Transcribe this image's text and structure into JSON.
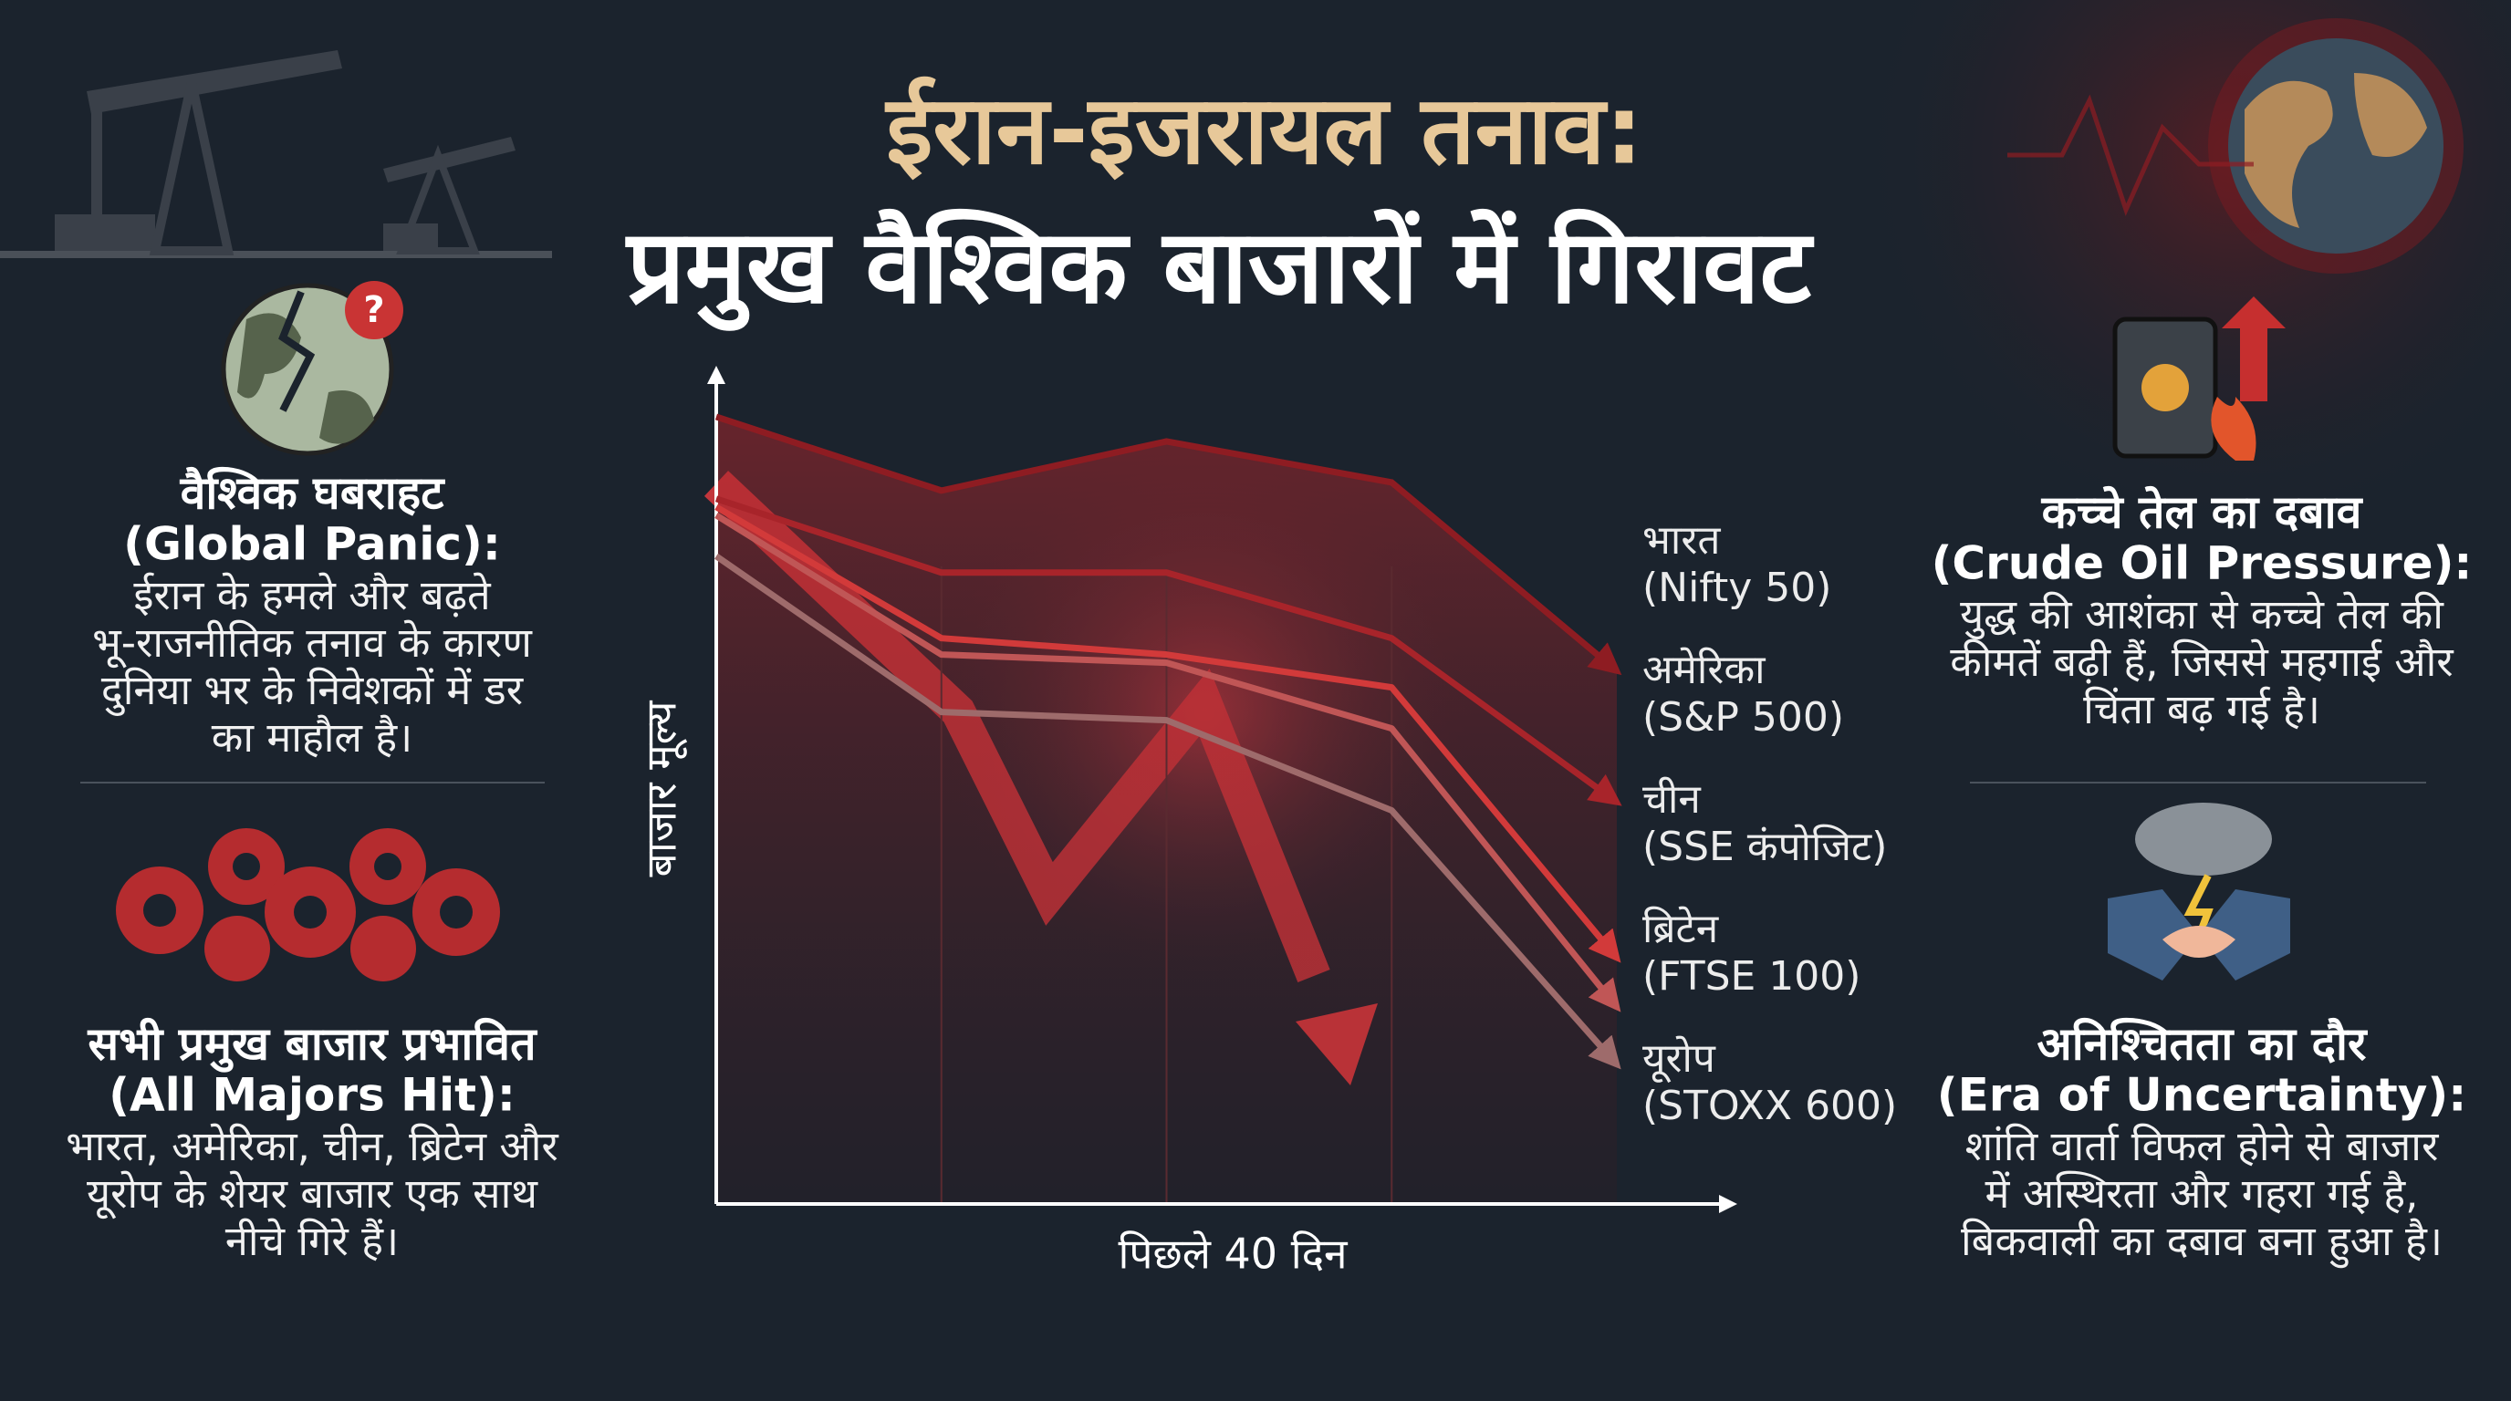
{
  "header": {
    "title_line1": "ईरान-इजरायल तनाव:",
    "title_line2": "प्रमुख वैश्विक बाजारों में गिरावट"
  },
  "left_panels": [
    {
      "heading": "वैश्विक घबराहट",
      "subheading": "(Global Panic):",
      "lines": [
        "ईरान के हमले और बढ़ते",
        "भू-राजनीतिक तनाव के कारण",
        "दुनिया भर के निवेशकों में डर",
        "का माहौल है।"
      ]
    },
    {
      "heading": "सभी प्रमुख बाजार प्रभावित",
      "subheading": "(All Majors Hit):",
      "lines": [
        "भारत, अमेरिका, चीन, ब्रिटेन और",
        "यूरोप के शेयर बाजार एक साथ",
        "नीचे गिरे हैं।"
      ]
    }
  ],
  "right_panels": [
    {
      "heading": "कच्चे तेल का दबाव",
      "subheading": "(Crude Oil Pressure):",
      "lines": [
        "युद्ध की आशंका से कच्चे तेल की",
        "कीमतें बढ़ी हैं, जिससे महगाई और",
        "चिंता बढ़ गई है।"
      ]
    },
    {
      "heading": "अनिश्चितता का दौर",
      "subheading": "(Era of Uncertainty):",
      "lines": [
        "शांति वार्ता विफल होने से बाजार",
        "में अस्थिरता और गहरा गई है,",
        "बिकवाली का दबाव बना हुआ है।"
      ]
    }
  ],
  "chart_data": {
    "type": "line",
    "x_label": "पिछले 40 दिन",
    "y_label": "बाजार मूल्य",
    "categories": [
      null,
      null,
      null,
      null,
      null
    ],
    "ylim": [
      0,
      100
    ],
    "series": [
      {
        "name": "भारत",
        "index": "(Nifty 50)",
        "color": "#8e1c22",
        "values": [
          96,
          87,
          93,
          88,
          65
        ]
      },
      {
        "name": "अमेरिका",
        "index": "(S&P 500)",
        "color": "#a8242a",
        "values": [
          86,
          77,
          77,
          69,
          49
        ]
      },
      {
        "name": "चीन",
        "index": "(SSE कंपोजिट)",
        "color": "#d23a3a",
        "values": [
          85,
          69,
          67,
          63,
          30
        ]
      },
      {
        "name": "ब्रिटेन",
        "index": "(FTSE 100)",
        "color": "#c05656",
        "values": [
          84,
          67,
          66,
          58,
          24
        ]
      },
      {
        "name": "यूरोप",
        "index": "(STOXX 600)",
        "color": "#9e6b6b",
        "values": [
          79,
          60,
          59,
          48,
          17
        ]
      }
    ]
  }
}
